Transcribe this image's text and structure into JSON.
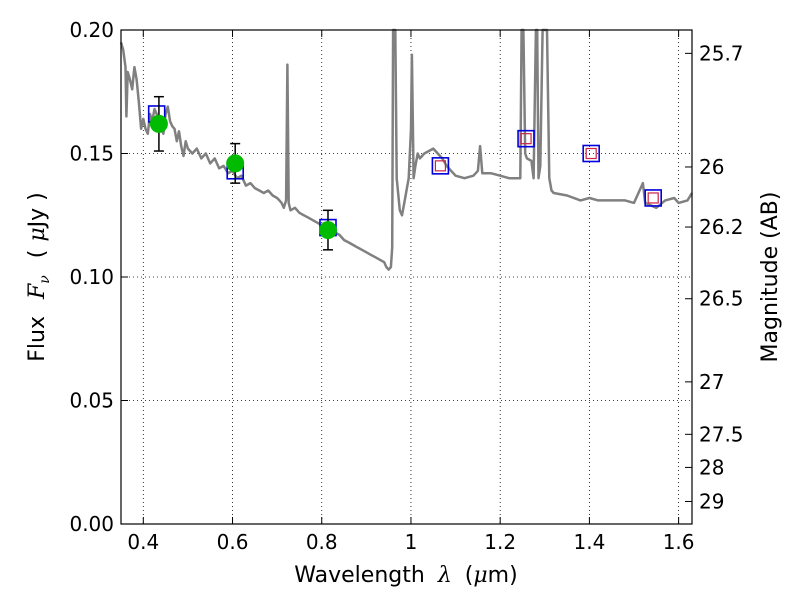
{
  "chart_data": {
    "type": "line",
    "xlabel_prefix": "Wavelength",
    "xlabel_symbol": "λ",
    "xlabel_unit_open": "(",
    "xlabel_unit_mu": "μ",
    "xlabel_unit_rest": "m)",
    "ylabel_prefix": "Flux",
    "ylabel_symbol": "F",
    "ylabel_sub": "ν",
    "ylabel_unit_open": "(",
    "ylabel_unit_mu": "μ",
    "ylabel_unit_rest": "Jy )",
    "y2label": "Magnitude (AB)",
    "xlim": [
      0.35,
      1.63
    ],
    "ylim": [
      0.0,
      0.2
    ],
    "x_ticks": [
      {
        "value": 0.4,
        "label": "0.4"
      },
      {
        "value": 0.6,
        "label": "0.6"
      },
      {
        "value": 0.8,
        "label": "0.8"
      },
      {
        "value": 1.0,
        "label": "1"
      },
      {
        "value": 1.2,
        "label": "1.2"
      },
      {
        "value": 1.4,
        "label": "1.4"
      },
      {
        "value": 1.6,
        "label": "1.6"
      }
    ],
    "y_ticks": [
      {
        "value": 0.0,
        "label": "0.00"
      },
      {
        "value": 0.05,
        "label": "0.05"
      },
      {
        "value": 0.1,
        "label": "0.10"
      },
      {
        "value": 0.15,
        "label": "0.15"
      },
      {
        "value": 0.2,
        "label": "0.20"
      }
    ],
    "mag_ticks": [
      "25.7",
      "26",
      "26.2",
      "26.5",
      "27",
      "27.5",
      "28",
      "29"
    ],
    "grid": true,
    "colors": {
      "sed": "#808080",
      "observed": "#00bb00",
      "model_box": "#0000dd",
      "model_inner": "#cc2244",
      "errorbar": "#000000"
    },
    "sed_spectrum": [
      [
        0.35,
        0.195
      ],
      [
        0.355,
        0.192
      ],
      [
        0.36,
        0.185
      ],
      [
        0.362,
        0.165
      ],
      [
        0.365,
        0.183
      ],
      [
        0.37,
        0.18
      ],
      [
        0.375,
        0.176
      ],
      [
        0.38,
        0.185
      ],
      [
        0.385,
        0.18
      ],
      [
        0.39,
        0.171
      ],
      [
        0.395,
        0.16
      ],
      [
        0.4,
        0.164
      ],
      [
        0.405,
        0.16
      ],
      [
        0.41,
        0.158
      ],
      [
        0.415,
        0.166
      ],
      [
        0.42,
        0.163
      ],
      [
        0.425,
        0.168
      ],
      [
        0.43,
        0.166
      ],
      [
        0.435,
        0.163
      ],
      [
        0.44,
        0.16
      ],
      [
        0.445,
        0.158
      ],
      [
        0.45,
        0.166
      ],
      [
        0.455,
        0.169
      ],
      [
        0.46,
        0.163
      ],
      [
        0.465,
        0.161
      ],
      [
        0.47,
        0.16
      ],
      [
        0.475,
        0.155
      ],
      [
        0.48,
        0.159
      ],
      [
        0.485,
        0.153
      ],
      [
        0.49,
        0.149
      ],
      [
        0.495,
        0.155
      ],
      [
        0.5,
        0.152
      ],
      [
        0.51,
        0.15
      ],
      [
        0.52,
        0.152
      ],
      [
        0.53,
        0.148
      ],
      [
        0.54,
        0.15
      ],
      [
        0.55,
        0.146
      ],
      [
        0.56,
        0.148
      ],
      [
        0.57,
        0.144
      ],
      [
        0.58,
        0.145
      ],
      [
        0.59,
        0.142
      ],
      [
        0.6,
        0.143
      ],
      [
        0.61,
        0.14
      ],
      [
        0.62,
        0.141
      ],
      [
        0.63,
        0.137
      ],
      [
        0.64,
        0.138
      ],
      [
        0.65,
        0.136
      ],
      [
        0.66,
        0.135
      ],
      [
        0.67,
        0.134
      ],
      [
        0.68,
        0.135
      ],
      [
        0.69,
        0.133
      ],
      [
        0.7,
        0.132
      ],
      [
        0.705,
        0.131
      ],
      [
        0.71,
        0.13
      ],
      [
        0.715,
        0.128
      ],
      [
        0.72,
        0.131
      ],
      [
        0.723,
        0.186
      ],
      [
        0.726,
        0.13
      ],
      [
        0.73,
        0.127
      ],
      [
        0.74,
        0.128
      ],
      [
        0.75,
        0.126
      ],
      [
        0.76,
        0.125
      ],
      [
        0.77,
        0.124
      ],
      [
        0.78,
        0.123
      ],
      [
        0.79,
        0.122
      ],
      [
        0.8,
        0.121
      ],
      [
        0.81,
        0.12
      ],
      [
        0.82,
        0.119
      ],
      [
        0.83,
        0.118
      ],
      [
        0.84,
        0.117
      ],
      [
        0.85,
        0.115
      ],
      [
        0.86,
        0.114
      ],
      [
        0.87,
        0.113
      ],
      [
        0.88,
        0.112
      ],
      [
        0.89,
        0.111
      ],
      [
        0.9,
        0.11
      ],
      [
        0.91,
        0.109
      ],
      [
        0.92,
        0.108
      ],
      [
        0.93,
        0.107
      ],
      [
        0.94,
        0.106
      ],
      [
        0.945,
        0.104
      ],
      [
        0.95,
        0.103
      ],
      [
        0.955,
        0.104
      ],
      [
        0.958,
        0.112
      ],
      [
        0.96,
        0.2
      ],
      [
        0.965,
        0.2
      ],
      [
        0.968,
        0.14
      ],
      [
        0.975,
        0.127
      ],
      [
        0.98,
        0.125
      ],
      [
        0.985,
        0.13
      ],
      [
        0.99,
        0.135
      ],
      [
        0.995,
        0.14
      ],
      [
        1.0,
        0.16
      ],
      [
        1.002,
        0.19
      ],
      [
        1.006,
        0.14
      ],
      [
        1.01,
        0.145
      ],
      [
        1.015,
        0.15
      ],
      [
        1.02,
        0.148
      ],
      [
        1.03,
        0.15
      ],
      [
        1.05,
        0.152
      ],
      [
        1.07,
        0.148
      ],
      [
        1.08,
        0.145
      ],
      [
        1.09,
        0.143
      ],
      [
        1.1,
        0.141
      ],
      [
        1.12,
        0.14
      ],
      [
        1.14,
        0.141
      ],
      [
        1.15,
        0.143
      ],
      [
        1.155,
        0.153
      ],
      [
        1.16,
        0.142
      ],
      [
        1.18,
        0.142
      ],
      [
        1.2,
        0.141
      ],
      [
        1.22,
        0.14
      ],
      [
        1.24,
        0.14
      ],
      [
        1.245,
        0.14
      ],
      [
        1.248,
        0.2
      ],
      [
        1.252,
        0.2
      ],
      [
        1.256,
        0.15
      ],
      [
        1.26,
        0.148
      ],
      [
        1.27,
        0.147
      ],
      [
        1.275,
        0.14
      ],
      [
        1.28,
        0.2
      ],
      [
        1.283,
        0.2
      ],
      [
        1.286,
        0.14
      ],
      [
        1.29,
        0.145
      ],
      [
        1.295,
        0.2
      ],
      [
        1.305,
        0.2
      ],
      [
        1.31,
        0.14
      ],
      [
        1.315,
        0.135
      ],
      [
        1.32,
        0.134
      ],
      [
        1.35,
        0.133
      ],
      [
        1.38,
        0.131
      ],
      [
        1.4,
        0.132
      ],
      [
        1.42,
        0.131
      ],
      [
        1.45,
        0.131
      ],
      [
        1.48,
        0.131
      ],
      [
        1.5,
        0.13
      ],
      [
        1.52,
        0.138
      ],
      [
        1.525,
        0.13
      ],
      [
        1.55,
        0.128
      ],
      [
        1.57,
        0.131
      ],
      [
        1.59,
        0.132
      ],
      [
        1.6,
        0.13
      ],
      [
        1.62,
        0.131
      ],
      [
        1.63,
        0.134
      ]
    ],
    "observed_points": [
      {
        "x": 0.435,
        "y": 0.162,
        "yerr": 0.011
      },
      {
        "x": 0.606,
        "y": 0.146,
        "yerr": 0.008
      },
      {
        "x": 0.814,
        "y": 0.119,
        "yerr": 0.008
      }
    ],
    "model_points": [
      {
        "x": 0.43,
        "y": 0.166,
        "upper_limit": false
      },
      {
        "x": 0.606,
        "y": 0.143,
        "upper_limit": false
      },
      {
        "x": 0.814,
        "y": 0.12,
        "upper_limit": false
      },
      {
        "x": 1.066,
        "y": 0.145,
        "upper_limit": true
      },
      {
        "x": 1.258,
        "y": 0.156,
        "upper_limit": true
      },
      {
        "x": 1.404,
        "y": 0.15,
        "upper_limit": true
      },
      {
        "x": 1.543,
        "y": 0.132,
        "upper_limit": true
      }
    ]
  }
}
